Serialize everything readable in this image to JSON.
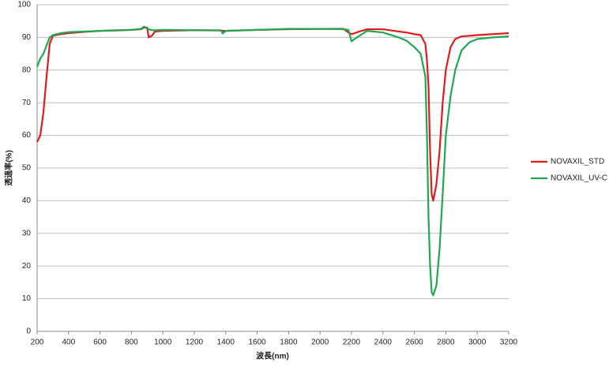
{
  "chart_data": {
    "type": "line",
    "x_label": "波長(nm)",
    "y_label": "透過率(%)",
    "x": [
      200,
      220,
      240,
      260,
      280,
      300,
      350,
      400,
      500,
      600,
      700,
      800,
      860,
      880,
      900,
      910,
      930,
      950,
      1000,
      1200,
      1370,
      1380,
      1400,
      1600,
      1800,
      2000,
      2150,
      2180,
      2200,
      2220,
      2250,
      2300,
      2400,
      2500,
      2550,
      2600,
      2640,
      2670,
      2680,
      2690,
      2700,
      2710,
      2720,
      2740,
      2760,
      2780,
      2800,
      2830,
      2860,
      2900,
      2950,
      3000,
      3100,
      3200
    ],
    "series": [
      {
        "name": "NOVAXIL_STD",
        "color": "#e31a1c",
        "values": [
          58,
          60,
          67,
          78,
          88,
          90.5,
          91,
          91.3,
          91.7,
          92,
          92.1,
          92.3,
          92.5,
          93,
          93,
          90,
          90.5,
          91.8,
          92,
          92.2,
          92.1,
          92,
          92,
          92.3,
          92.5,
          92.6,
          92.6,
          91.5,
          91,
          91.3,
          91.8,
          92.5,
          92.5,
          91.8,
          91.5,
          91,
          90.7,
          88,
          83,
          75,
          55,
          42,
          40,
          45,
          55,
          70,
          80,
          87,
          89.5,
          90.3,
          90.5,
          90.7,
          91,
          91.3
        ]
      },
      {
        "name": "NOVAXIL_UV-C",
        "color": "#1fa84f",
        "values": [
          81,
          83.5,
          85,
          87.5,
          90,
          90.7,
          91.3,
          91.6,
          91.8,
          92,
          92.2,
          92.3,
          92.6,
          93.3,
          92.8,
          92.5,
          92.2,
          92.2,
          92.3,
          92.2,
          92.2,
          91.2,
          92,
          92.3,
          92.6,
          92.6,
          92.5,
          92.3,
          88.8,
          89.5,
          90.5,
          92,
          91.5,
          90,
          89,
          87,
          85,
          78,
          60,
          35,
          20,
          12,
          11,
          14,
          25,
          42,
          60,
          72,
          80,
          86,
          88.5,
          89.5,
          90,
          90.3
        ]
      }
    ],
    "xlim": [
      200,
      3200
    ],
    "xticks": [
      200,
      400,
      600,
      800,
      1000,
      1200,
      1400,
      1600,
      1800,
      2000,
      2200,
      2400,
      2600,
      2800,
      3000,
      3200
    ],
    "ylim": [
      0,
      100
    ],
    "yticks": [
      0,
      10,
      20,
      30,
      40,
      50,
      60,
      70,
      80,
      90,
      100
    ],
    "grid": true,
    "legend": "right"
  }
}
